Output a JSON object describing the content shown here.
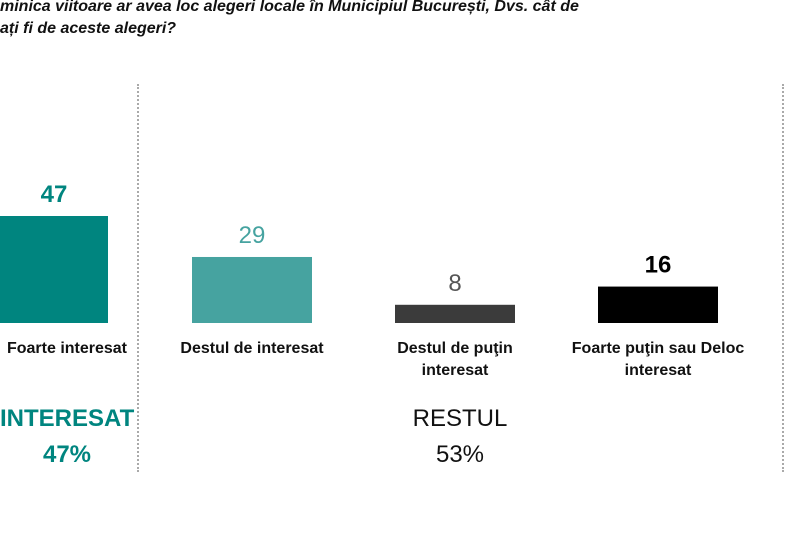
{
  "title": {
    "line1": "minica viitoare ar avea loc alegeri locale în Municipiul București, Dvs. cât de",
    "line2": "ați fi de aceste alegeri?"
  },
  "chart_data": {
    "type": "bar",
    "categories": [
      "Foarte interesat",
      "Destul de interesat",
      "Destul de puţin interesat",
      "Foarte puţin sau Deloc interesat"
    ],
    "values": [
      47,
      29,
      8,
      16
    ],
    "colors": [
      "#00857f",
      "#46a3a0",
      "#3b3b3b",
      "#000000"
    ],
    "ylim": [
      0,
      50
    ],
    "grid": false,
    "groups": [
      {
        "label": "INTERESAT",
        "value": "47%",
        "color": "#00857f"
      },
      {
        "label": "RESTUL",
        "value": "53%",
        "color": "#111111"
      }
    ]
  }
}
